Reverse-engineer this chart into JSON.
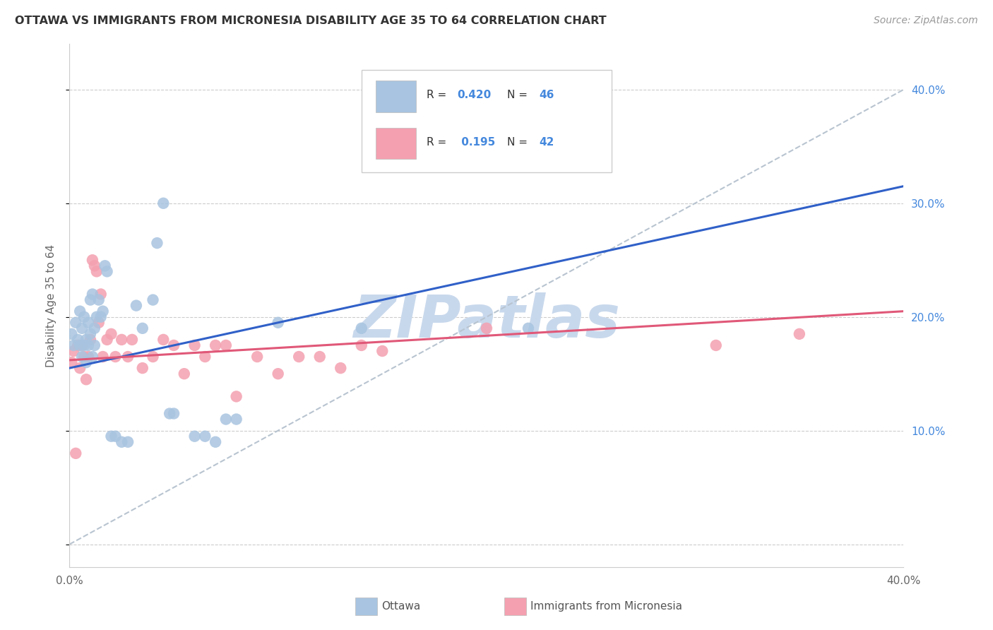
{
  "title": "OTTAWA VS IMMIGRANTS FROM MICRONESIA DISABILITY AGE 35 TO 64 CORRELATION CHART",
  "source": "Source: ZipAtlas.com",
  "ylabel": "Disability Age 35 to 64",
  "xlim": [
    0.0,
    0.4
  ],
  "ylim": [
    -0.02,
    0.44
  ],
  "ytick_positions": [
    0.0,
    0.1,
    0.2,
    0.3,
    0.4
  ],
  "ytick_labels_right": [
    "",
    "10.0%",
    "20.0%",
    "30.0%",
    "40.0%"
  ],
  "xtick_positions": [
    0.0,
    0.1,
    0.2,
    0.3,
    0.4
  ],
  "xtick_labels": [
    "0.0%",
    "",
    "",
    "",
    "40.0%"
  ],
  "ottawa_R": 0.42,
  "ottawa_N": 46,
  "micro_R": 0.195,
  "micro_N": 42,
  "ottawa_color": "#a8c4e0",
  "micro_color": "#f4a0b0",
  "trendline_ottawa_color": "#3060c8",
  "trendline_micro_color": "#e05878",
  "dashed_line_color": "#b8c4d0",
  "watermark_color": "#c8d8ec",
  "ottawa_x": [
    0.001,
    0.002,
    0.003,
    0.004,
    0.005,
    0.005,
    0.006,
    0.006,
    0.007,
    0.007,
    0.008,
    0.008,
    0.009,
    0.009,
    0.01,
    0.01,
    0.011,
    0.011,
    0.012,
    0.012,
    0.013,
    0.014,
    0.015,
    0.016,
    0.017,
    0.018,
    0.02,
    0.022,
    0.025,
    0.028,
    0.032,
    0.035,
    0.04,
    0.042,
    0.045,
    0.048,
    0.05,
    0.06,
    0.065,
    0.07,
    0.075,
    0.08,
    0.1,
    0.14,
    0.2,
    0.22
  ],
  "ottawa_y": [
    0.185,
    0.175,
    0.195,
    0.18,
    0.175,
    0.205,
    0.165,
    0.19,
    0.2,
    0.175,
    0.18,
    0.16,
    0.195,
    0.175,
    0.215,
    0.185,
    0.22,
    0.165,
    0.19,
    0.175,
    0.2,
    0.215,
    0.2,
    0.205,
    0.245,
    0.24,
    0.095,
    0.095,
    0.09,
    0.09,
    0.21,
    0.19,
    0.215,
    0.265,
    0.3,
    0.115,
    0.115,
    0.095,
    0.095,
    0.09,
    0.11,
    0.11,
    0.195,
    0.19,
    0.345,
    0.19
  ],
  "micro_x": [
    0.001,
    0.002,
    0.003,
    0.004,
    0.005,
    0.006,
    0.007,
    0.008,
    0.009,
    0.01,
    0.011,
    0.012,
    0.013,
    0.014,
    0.015,
    0.016,
    0.018,
    0.02,
    0.022,
    0.025,
    0.028,
    0.03,
    0.035,
    0.04,
    0.045,
    0.05,
    0.055,
    0.06,
    0.065,
    0.07,
    0.075,
    0.08,
    0.09,
    0.1,
    0.11,
    0.12,
    0.13,
    0.14,
    0.15,
    0.2,
    0.31,
    0.35
  ],
  "micro_y": [
    0.16,
    0.17,
    0.08,
    0.175,
    0.155,
    0.175,
    0.165,
    0.145,
    0.165,
    0.18,
    0.25,
    0.245,
    0.24,
    0.195,
    0.22,
    0.165,
    0.18,
    0.185,
    0.165,
    0.18,
    0.165,
    0.18,
    0.155,
    0.165,
    0.18,
    0.175,
    0.15,
    0.175,
    0.165,
    0.175,
    0.175,
    0.13,
    0.165,
    0.15,
    0.165,
    0.165,
    0.155,
    0.175,
    0.17,
    0.19,
    0.175,
    0.185
  ]
}
